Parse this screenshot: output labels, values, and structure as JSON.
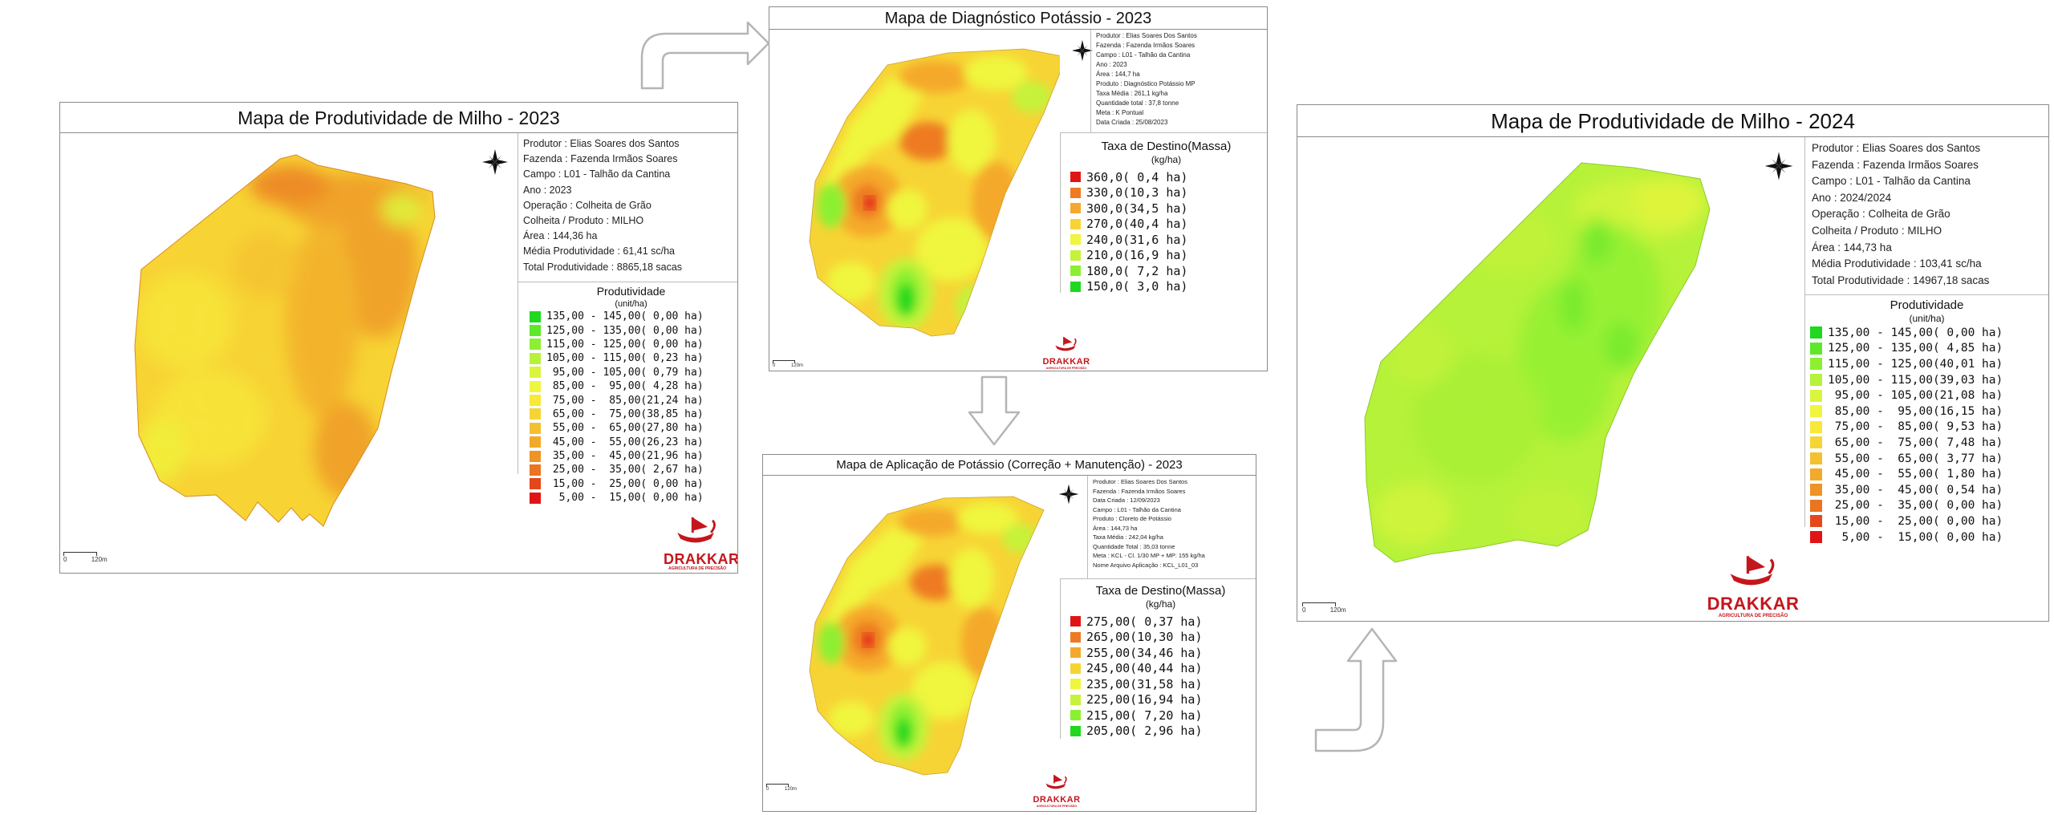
{
  "colors": {
    "panel_border": "#8a8a8a",
    "logo_red": "#c4161c",
    "arrow_stroke": "#b5b5b5"
  },
  "icons": [
    "compass-rose-icon",
    "drakkar-ship-icon",
    "curved-arrow-icon",
    "down-arrow-icon"
  ],
  "map_2023": {
    "title": "Mapa de Produtividade de Milho - 2023",
    "info": [
      "Produtor : Elias Soares dos Santos",
      "Fazenda  : Fazenda Irmãos Soares",
      "Campo  : L01 - Talhão da Cantina",
      "Ano : 2023",
      "Operação  : Colheita de Grão",
      "Colheita / Produto : MILHO",
      "Área : 144,36 ha",
      "Média Produtividade : 61,41 sc/ha",
      "Total Produtividade : 8865,18  sacas"
    ],
    "legend_title": "Produtividade",
    "legend_unit": "(unit/ha)",
    "legend": [
      {
        "label": "135,00 - 145,00( 0,00 ha)",
        "color": "#1fd81f"
      },
      {
        "label": "125,00 - 135,00( 0,00 ha)",
        "color": "#5ee82a"
      },
      {
        "label": "115,00 - 125,00( 0,00 ha)",
        "color": "#8cf032"
      },
      {
        "label": "105,00 - 115,00( 0,23 ha)",
        "color": "#b6f23a"
      },
      {
        "label": " 95,00 - 105,00( 0,79 ha)",
        "color": "#d9f53e"
      },
      {
        "label": " 85,00 -  95,00( 4,28 ha)",
        "color": "#f0f53e"
      },
      {
        "label": " 75,00 -  85,00(21,24 ha)",
        "color": "#f7e83a"
      },
      {
        "label": " 65,00 -  75,00(38,85 ha)",
        "color": "#f7d435"
      },
      {
        "label": " 55,00 -  65,00(27,80 ha)",
        "color": "#f5c030"
      },
      {
        "label": " 45,00 -  55,00(26,23 ha)",
        "color": "#f2aa2b"
      },
      {
        "label": " 35,00 -  45,00(21,96 ha)",
        "color": "#ee9326"
      },
      {
        "label": " 25,00 -  35,00( 2,67 ha)",
        "color": "#ea7420"
      },
      {
        "label": " 15,00 -  25,00( 0,00 ha)",
        "color": "#e5471a"
      },
      {
        "label": "  5,00 -  15,00( 0,00 ha)",
        "color": "#e01414"
      }
    ],
    "scale": "120m",
    "scale_zero": "0",
    "logo_brand": "DRAKKAR",
    "logo_sub": "AGRICULTURA DE PRECISÃO"
  },
  "map_diag": {
    "title": "Mapa de Diagnóstico Potássio - 2023",
    "info": [
      "Produtor : Elias Soares Dos Santos",
      "Fazenda : Fazenda Irmãos Soares",
      "Campo : L01 - Talhão da Cantina",
      "Ano : 2023",
      "Área : 144,7 ha",
      "Produto : Diagnóstico Potássio MP",
      "Taxa Média : 261,1 kg/ha",
      "Quantidade total : 37,8 tonne",
      "Meta : K Pontual",
      "Data Criada : 25/08/2023"
    ],
    "legend_title": "Taxa de Destino(Massa)",
    "legend_unit": "(kg/ha)",
    "legend": [
      {
        "label": "360,0( 0,4 ha)",
        "color": "#e01414"
      },
      {
        "label": "330,0(10,3 ha)",
        "color": "#ee7a22"
      },
      {
        "label": "300,0(34,5 ha)",
        "color": "#f5a92c"
      },
      {
        "label": "270,0(40,4 ha)",
        "color": "#f7d435"
      },
      {
        "label": "240,0(31,6 ha)",
        "color": "#f0f53e"
      },
      {
        "label": "210,0(16,9 ha)",
        "color": "#c6f23a"
      },
      {
        "label": "180,0( 7,2 ha)",
        "color": "#8cf032"
      },
      {
        "label": "150,0( 3,0 ha)",
        "color": "#1fd81f"
      }
    ],
    "scale": "120m",
    "scale_zero": "0",
    "logo_brand": "DRAKKAR",
    "logo_sub": "AGRICULTURA DE PRECISÃO"
  },
  "map_aplic": {
    "title": "Mapa de Aplicação de Potássio (Correção + Manutenção) - 2023",
    "info": [
      "Produtor : Elias Soares Dos Santos",
      "Fazenda : Fazenda Irmãos Soares",
      "Data Criada : 12/09/2023",
      "Campo : L01 - Talhão da Cantina",
      "Produto : Cloreto de Potássio",
      "Área : 144,73 ha",
      "Taxa Média : 242,04 kg/ha",
      "Quantidade Total : 35,03 tonne",
      "Meta : KCL - Cl. 1/30 MP + MP: 155 kg/ha",
      "Nome Arquivo Aplicação : KCL_L01_03"
    ],
    "legend_title": "Taxa de Destino(Massa)",
    "legend_unit": "(kg/ha)",
    "legend": [
      {
        "label": "275,00( 0,37 ha)",
        "color": "#e01414"
      },
      {
        "label": "265,00(10,30 ha)",
        "color": "#ee7a22"
      },
      {
        "label": "255,00(34,46 ha)",
        "color": "#f5a92c"
      },
      {
        "label": "245,00(40,44 ha)",
        "color": "#f7d435"
      },
      {
        "label": "235,00(31,58 ha)",
        "color": "#f0f53e"
      },
      {
        "label": "225,00(16,94 ha)",
        "color": "#c6f23a"
      },
      {
        "label": "215,00( 7,20 ha)",
        "color": "#8cf032"
      },
      {
        "label": "205,00( 2,96 ha)",
        "color": "#1fd81f"
      }
    ],
    "scale": "120m",
    "scale_zero": "0",
    "logo_brand": "DRAKKAR",
    "logo_sub": "AGRICULTURA DE PRECISÃO"
  },
  "map_2024": {
    "title": "Mapa de Produtividade de Milho - 2024",
    "info": [
      "Produtor : Elias Soares dos Santos",
      "Fazenda  : Fazenda Irmãos Soares",
      "Campo  : L01 - Talhão da Cantina",
      "Ano : 2024/2024",
      "Operação  : Colheita de Grão",
      "Colheita / Produto : MILHO",
      "Área : 144,73 ha",
      "Média Produtividade : 103,41 sc/ha",
      "Total Produtividade : 14967,18 sacas"
    ],
    "legend_title": "Produtividade",
    "legend_unit": "(unit/ha)",
    "legend": [
      {
        "label": "135,00 - 145,00( 0,00 ha)",
        "color": "#1fd81f"
      },
      {
        "label": "125,00 - 135,00( 4,85 ha)",
        "color": "#5ee82a"
      },
      {
        "label": "115,00 - 125,00(40,01 ha)",
        "color": "#8cf032"
      },
      {
        "label": "105,00 - 115,00(39,03 ha)",
        "color": "#b6f23a"
      },
      {
        "label": " 95,00 - 105,00(21,08 ha)",
        "color": "#d9f53e"
      },
      {
        "label": " 85,00 -  95,00(16,15 ha)",
        "color": "#f0f53e"
      },
      {
        "label": " 75,00 -  85,00( 9,53 ha)",
        "color": "#f7e83a"
      },
      {
        "label": " 65,00 -  75,00( 7,48 ha)",
        "color": "#f7d435"
      },
      {
        "label": " 55,00 -  65,00( 3,77 ha)",
        "color": "#f5c030"
      },
      {
        "label": " 45,00 -  55,00( 1,80 ha)",
        "color": "#f2aa2b"
      },
      {
        "label": " 35,00 -  45,00( 0,54 ha)",
        "color": "#ee9326"
      },
      {
        "label": " 25,00 -  35,00( 0,00 ha)",
        "color": "#ea7420"
      },
      {
        "label": " 15,00 -  25,00( 0,00 ha)",
        "color": "#e5471a"
      },
      {
        "label": "  5,00 -  15,00( 0,00 ha)",
        "color": "#e01414"
      }
    ],
    "scale": "120m",
    "scale_zero": "0",
    "logo_brand": "DRAKKAR",
    "logo_sub": "AGRICULTURA DE PRECISÃO"
  }
}
